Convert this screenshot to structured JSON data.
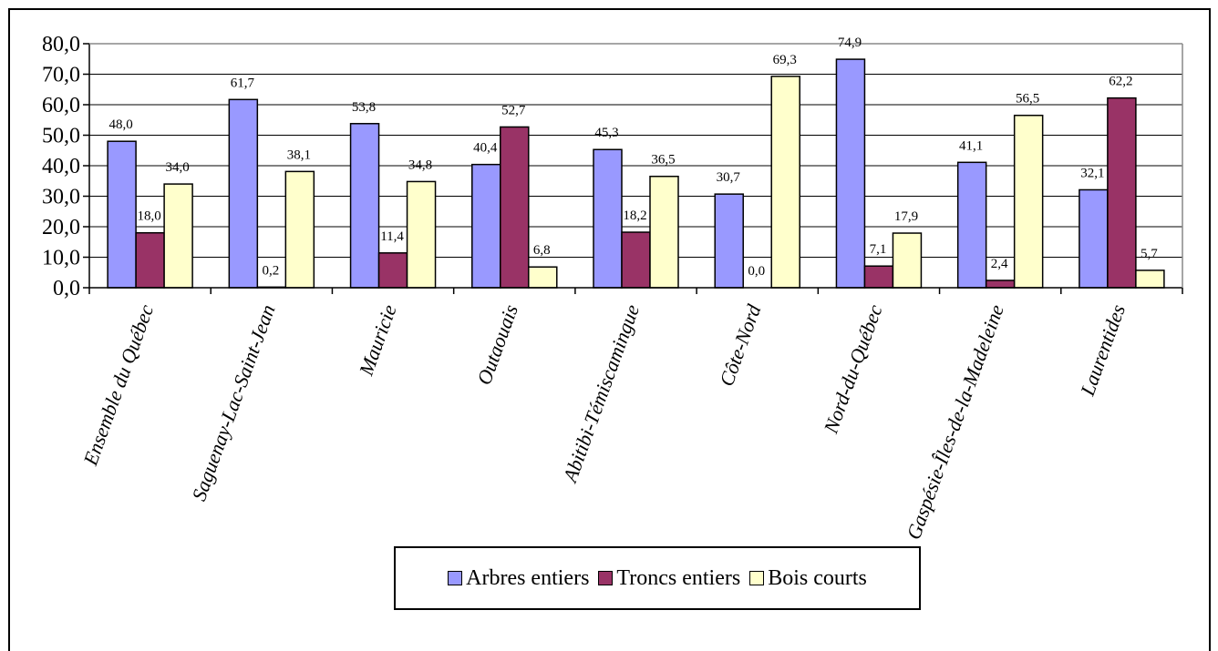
{
  "chart_data": {
    "type": "bar",
    "title": "",
    "xlabel": "",
    "ylabel": "",
    "ylim": [
      0,
      80
    ],
    "yticks": [
      "0,0",
      "10,0",
      "20,0",
      "30,0",
      "40,0",
      "50,0",
      "60,0",
      "70,0",
      "80,0"
    ],
    "grid": true,
    "legend_position": "bottom",
    "categories": [
      "Ensemble du Québec",
      "Saguenay-Lac-Saint-Jean",
      "Mauricie",
      "Outaouais",
      "Abitibi-Témiscamingue",
      "Côte-Nord",
      "Nord-du-Québec",
      "Gaspésie-Îles-de-la-Madeleine",
      "Laurentides"
    ],
    "series": [
      {
        "name": "Arbres entiers",
        "color": "#9999ff",
        "values": [
          48.0,
          61.7,
          53.8,
          40.4,
          45.3,
          30.7,
          74.9,
          41.1,
          32.1
        ],
        "labels": [
          "48,0",
          "61,7",
          "53,8",
          "40,4",
          "45,3",
          "30,7",
          "74,9",
          "41,1",
          "32,1"
        ]
      },
      {
        "name": "Troncs entiers",
        "color": "#993366",
        "values": [
          18.0,
          0.2,
          11.4,
          52.7,
          18.2,
          0.0,
          7.1,
          2.4,
          62.2
        ],
        "labels": [
          "18,0",
          "0,2",
          "11,4",
          "52,7",
          "18,2",
          "0,0",
          "7,1",
          "2,4",
          "62,2"
        ]
      },
      {
        "name": "Bois courts",
        "color": "#ffffcc",
        "values": [
          34.0,
          38.1,
          34.8,
          6.8,
          36.5,
          69.3,
          17.9,
          56.5,
          5.7
        ],
        "labels": [
          "34,0",
          "38,1",
          "34,8",
          "6,8",
          "36,5",
          "69,3",
          "17,9",
          "56,5",
          "5,7"
        ]
      }
    ]
  }
}
